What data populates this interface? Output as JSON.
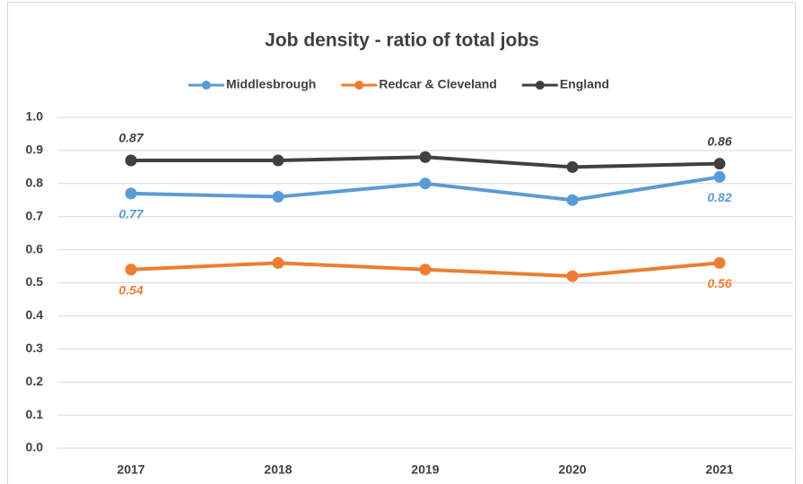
{
  "chart_data": {
    "type": "line",
    "title": "Job density - ratio of total jobs",
    "categories": [
      "2017",
      "2018",
      "2019",
      "2020",
      "2021"
    ],
    "series": [
      {
        "name": "Middlesbrough",
        "color": "#5b9bd5",
        "values": [
          0.77,
          0.76,
          0.8,
          0.75,
          0.82
        ],
        "value_labels": [
          "0.77",
          null,
          null,
          null,
          "0.82"
        ],
        "label_position": "below"
      },
      {
        "name": "Redcar & Cleveland",
        "color": "#ed7d31",
        "values": [
          0.54,
          0.56,
          0.54,
          0.52,
          0.56
        ],
        "value_labels": [
          "0.54",
          null,
          null,
          null,
          "0.56"
        ],
        "label_position": "below"
      },
      {
        "name": "England",
        "color": "#404040",
        "values": [
          0.87,
          0.87,
          0.88,
          0.85,
          0.86
        ],
        "value_labels": [
          "0.87",
          null,
          null,
          null,
          "0.86"
        ],
        "label_position": "above"
      }
    ],
    "ylim": [
      0,
      1
    ],
    "yticks": [
      {
        "value": 0,
        "label": "0.0"
      },
      0.1,
      0.2,
      0.3,
      0.4,
      0.5,
      0.6,
      0.7,
      0.8,
      0.9,
      {
        "value": 1,
        "label": "1.0"
      }
    ],
    "grid": true,
    "legend": "top"
  }
}
